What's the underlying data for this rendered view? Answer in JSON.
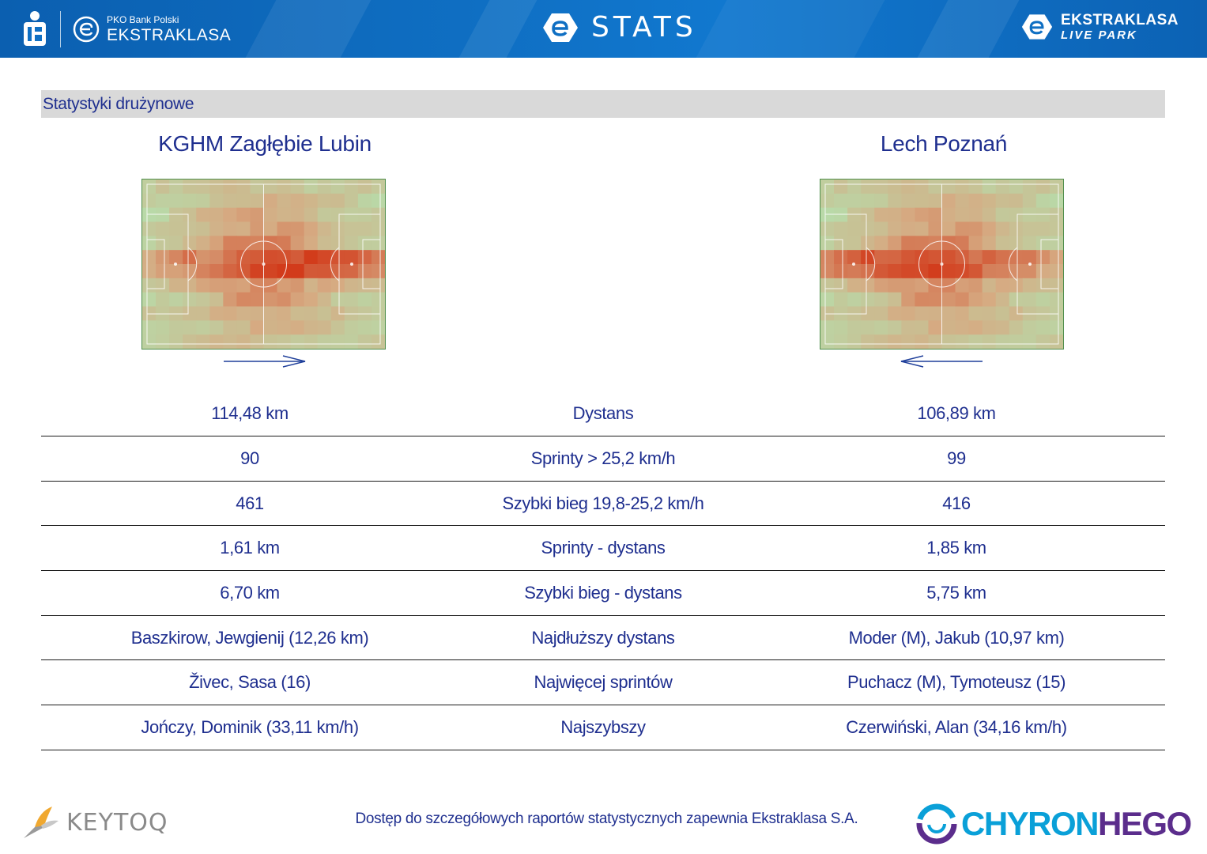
{
  "header": {
    "bank_small": "PKO Bank Polski",
    "league": "EKSTRAKLASA",
    "title": "STATS",
    "right_line1": "EKSTRAKLASA",
    "right_line2": "LIVE PARK"
  },
  "section_title": "Statystyki drużynowe",
  "teams": {
    "left": "KGHM Zagłębie Lubin",
    "right": "Lech Poznań"
  },
  "stats": [
    {
      "left": "114,48 km",
      "label": "Dystans",
      "right": "106,89 km"
    },
    {
      "left": "90",
      "label": "Sprinty > 25,2 km/h",
      "right": "99"
    },
    {
      "left": "461",
      "label": "Szybki bieg 19,8-25,2 km/h",
      "right": "416"
    },
    {
      "left": "1,61 km",
      "label": "Sprinty - dystans",
      "right": "1,85 km"
    },
    {
      "left": "6,70 km",
      "label": "Szybki bieg - dystans",
      "right": "5,75 km"
    },
    {
      "left": "Baszkirow, Jewgienij (12,26 km)",
      "label": "Najdłuższy dystans",
      "right": "Moder (M), Jakub (10,97 km)"
    },
    {
      "left": "Živec, Sasa (16)",
      "label": "Najwięcej sprintów",
      "right": "Puchacz (M), Tymoteusz (15)"
    },
    {
      "left": "Jończy, Dominik (33,11 km/h)",
      "label": "Najszybszy",
      "right": "Czerwiński, Alan (34,16 km/h)"
    }
  ],
  "footer": {
    "note": "Dostęp do szczegółowych raportów statystycznych zapewnia Ekstraklasa S.A.",
    "left_logo": "KEYTOQ",
    "right_logo_a": "CHYRON",
    "right_logo_b": "HEGO"
  },
  "colors": {
    "header_blue": "#0f6fc3",
    "text_navy": "#1f2f8f",
    "pitch_green": "#b7dcaa",
    "heat_red": "#d23a1a"
  }
}
